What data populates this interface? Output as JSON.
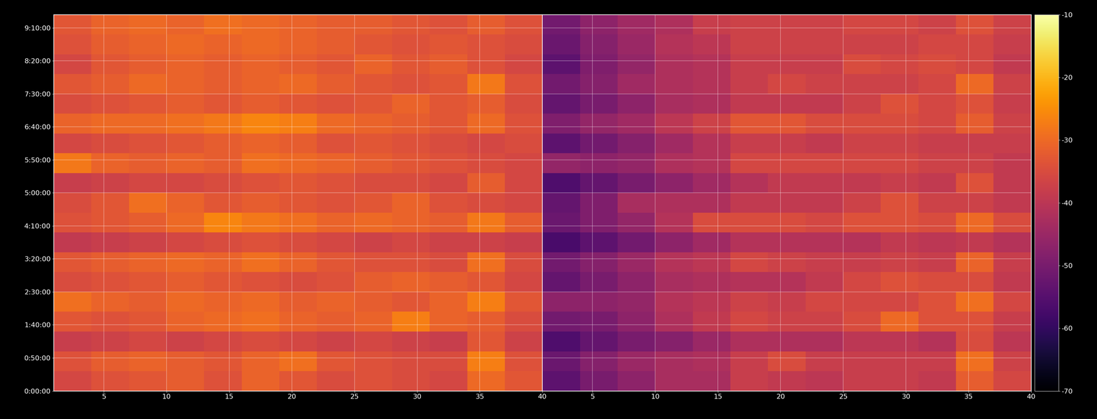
{
  "chart_data": {
    "type": "heatmap",
    "color": "inferno",
    "grid": true,
    "xlim": [
      1,
      40
    ],
    "xticks": [
      5,
      10,
      15,
      20,
      25,
      30,
      35,
      40
    ],
    "ylim": [
      0,
      34200
    ],
    "yticks": [
      {
        "value": 0,
        "label": "0:00:00"
      },
      {
        "value": 3000,
        "label": "0:50:00"
      },
      {
        "value": 6000,
        "label": "1:40:00"
      },
      {
        "value": 9000,
        "label": "2:30:00"
      },
      {
        "value": 12000,
        "label": "3:20:00"
      },
      {
        "value": 15000,
        "label": "4:10:00"
      },
      {
        "value": 18000,
        "label": "5:00:00"
      },
      {
        "value": 21000,
        "label": "5:50:00"
      },
      {
        "value": 24000,
        "label": "6:40:00"
      },
      {
        "value": 27000,
        "label": "7:30:00"
      },
      {
        "value": 30000,
        "label": "8:20:00"
      },
      {
        "value": 33000,
        "label": "9:10:00"
      }
    ],
    "colorbar": {
      "range": [
        -70,
        -10
      ],
      "ticks": [
        -10,
        -20,
        -30,
        -40,
        -50,
        -60,
        -70
      ]
    },
    "x_edges": [
      1,
      4,
      7,
      10,
      13,
      16,
      19,
      22,
      25,
      28,
      31,
      34,
      37,
      40
    ],
    "y_edges": [
      0,
      1800,
      3600,
      5400,
      7200,
      9000,
      10800,
      12600,
      14400,
      16200,
      18000,
      19800,
      21600,
      23400,
      25200,
      27000,
      28800,
      30600,
      32400,
      34200
    ],
    "panels": [
      {
        "cells": [
          [
            -36,
            -34,
            -33,
            -32,
            -34,
            -31,
            -33,
            -35,
            -34,
            -35,
            -36,
            -30,
            -33
          ],
          [
            -34,
            -32,
            -31,
            -32,
            -33,
            -31,
            -29,
            -33,
            -34,
            -35,
            -35,
            -27,
            -34
          ],
          [
            -38,
            -37,
            -36,
            -37,
            -36,
            -35,
            -36,
            -37,
            -36,
            -37,
            -38,
            -33,
            -37
          ],
          [
            -33,
            -34,
            -33,
            -31,
            -30,
            -29,
            -31,
            -32,
            -31,
            -27,
            -31,
            -32,
            -35
          ],
          [
            -29,
            -31,
            -32,
            -30,
            -31,
            -30,
            -32,
            -31,
            -32,
            -33,
            -31,
            -27,
            -33
          ],
          [
            -35,
            -34,
            -33,
            -32,
            -33,
            -34,
            -35,
            -34,
            -32,
            -31,
            -32,
            -33,
            -36
          ],
          [
            -33,
            -32,
            -31,
            -30,
            -31,
            -29,
            -31,
            -33,
            -34,
            -34,
            -35,
            -29,
            -35
          ],
          [
            -39,
            -38,
            -37,
            -36,
            -35,
            -34,
            -35,
            -36,
            -37,
            -36,
            -37,
            -37,
            -38
          ],
          [
            -34,
            -33,
            -32,
            -30,
            -26,
            -28,
            -29,
            -31,
            -30,
            -31,
            -32,
            -28,
            -32
          ],
          [
            -35,
            -33,
            -29,
            -31,
            -33,
            -32,
            -33,
            -34,
            -33,
            -31,
            -34,
            -35,
            -36
          ],
          [
            -38,
            -37,
            -36,
            -36,
            -35,
            -34,
            -33,
            -34,
            -35,
            -35,
            -36,
            -32,
            -36
          ],
          [
            -28,
            -31,
            -32,
            -31,
            -32,
            -29,
            -30,
            -31,
            -32,
            -33,
            -34,
            -35,
            -36
          ],
          [
            -36,
            -35,
            -34,
            -33,
            -32,
            -31,
            -32,
            -34,
            -33,
            -34,
            -35,
            -36,
            -35
          ],
          [
            -31,
            -30,
            -30,
            -29,
            -28,
            -26,
            -27,
            -30,
            -31,
            -32,
            -33,
            -30,
            -34
          ],
          [
            -35,
            -34,
            -33,
            -32,
            -33,
            -32,
            -33,
            -34,
            -33,
            -31,
            -33,
            -32,
            -35
          ],
          [
            -33,
            -32,
            -30,
            -31,
            -32,
            -31,
            -30,
            -32,
            -33,
            -34,
            -33,
            -28,
            -34
          ],
          [
            -36,
            -33,
            -32,
            -31,
            -32,
            -31,
            -32,
            -33,
            -31,
            -33,
            -32,
            -34,
            -36
          ],
          [
            -34,
            -32,
            -31,
            -30,
            -31,
            -30,
            -31,
            -32,
            -33,
            -34,
            -33,
            -34,
            -35
          ],
          [
            -33,
            -31,
            -30,
            -31,
            -29,
            -30,
            -31,
            -32,
            -32,
            -33,
            -34,
            -32,
            -34
          ]
        ]
      },
      {
        "cells": [
          [
            -54,
            -50,
            -47,
            -43,
            -43,
            -38,
            -39,
            -40,
            -38,
            -38,
            -39,
            -32,
            -36
          ],
          [
            -52,
            -48,
            -45,
            -43,
            -42,
            -38,
            -35,
            -38,
            -38,
            -38,
            -38,
            -29,
            -37
          ],
          [
            -56,
            -53,
            -50,
            -48,
            -45,
            -42,
            -42,
            -42,
            -40,
            -40,
            -41,
            -35,
            -40
          ],
          [
            -51,
            -50,
            -47,
            -42,
            -39,
            -36,
            -37,
            -37,
            -35,
            -30,
            -34,
            -34,
            -38
          ],
          [
            -47,
            -47,
            -46,
            -41,
            -40,
            -37,
            -38,
            -36,
            -36,
            -36,
            -34,
            -29,
            -36
          ],
          [
            -53,
            -50,
            -47,
            -43,
            -42,
            -41,
            -41,
            -39,
            -36,
            -34,
            -35,
            -35,
            -39
          ],
          [
            -51,
            -48,
            -45,
            -41,
            -40,
            -36,
            -37,
            -38,
            -38,
            -37,
            -38,
            -31,
            -38
          ],
          [
            -57,
            -54,
            -51,
            -47,
            -44,
            -41,
            -41,
            -41,
            -41,
            -39,
            -40,
            -39,
            -41
          ],
          [
            -52,
            -49,
            -46,
            -41,
            -35,
            -35,
            -35,
            -36,
            -34,
            -34,
            -35,
            -30,
            -35
          ],
          [
            -53,
            -49,
            -43,
            -42,
            -42,
            -39,
            -39,
            -39,
            -37,
            -34,
            -37,
            -37,
            -39
          ],
          [
            -56,
            -53,
            -50,
            -47,
            -44,
            -41,
            -39,
            -39,
            -39,
            -38,
            -39,
            -34,
            -39
          ],
          [
            -46,
            -47,
            -46,
            -42,
            -41,
            -36,
            -36,
            -36,
            -36,
            -36,
            -37,
            -37,
            -39
          ],
          [
            -54,
            -51,
            -48,
            -44,
            -41,
            -38,
            -38,
            -39,
            -37,
            -37,
            -38,
            -38,
            -38
          ],
          [
            -49,
            -46,
            -44,
            -40,
            -37,
            -33,
            -33,
            -35,
            -35,
            -35,
            -36,
            -32,
            -37
          ],
          [
            -53,
            -50,
            -47,
            -43,
            -42,
            -39,
            -39,
            -39,
            -37,
            -34,
            -36,
            -34,
            -38
          ],
          [
            -51,
            -48,
            -44,
            -42,
            -41,
            -38,
            -36,
            -37,
            -37,
            -37,
            -36,
            -30,
            -37
          ],
          [
            -54,
            -49,
            -46,
            -42,
            -41,
            -38,
            -38,
            -38,
            -35,
            -36,
            -35,
            -36,
            -39
          ],
          [
            -52,
            -48,
            -45,
            -41,
            -40,
            -37,
            -37,
            -37,
            -37,
            -37,
            -36,
            -36,
            -38
          ],
          [
            -51,
            -47,
            -44,
            -42,
            -38,
            -37,
            -37,
            -37,
            -36,
            -36,
            -37,
            -34,
            -37
          ]
        ]
      }
    ]
  }
}
